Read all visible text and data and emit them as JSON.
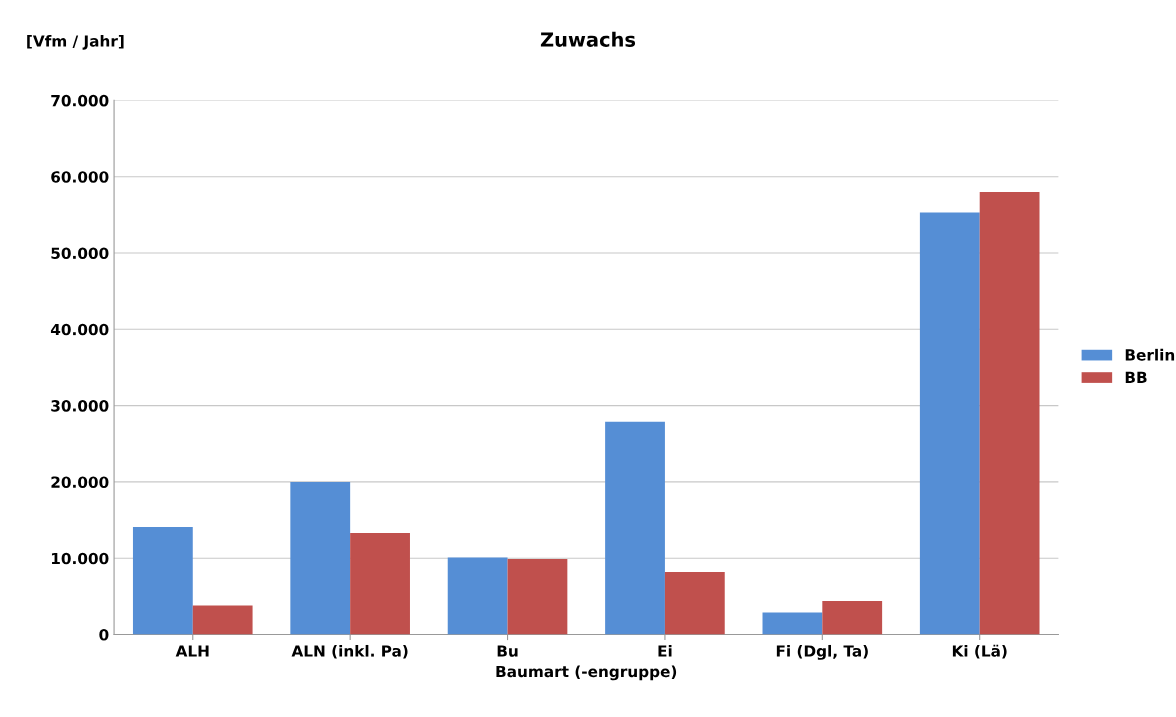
{
  "chart_data": {
    "type": "bar",
    "title": "Zuwachs",
    "ylabel": "[Vfm / Jahr]",
    "xlabel": "Baumart (-engruppe)",
    "categories": [
      "ALH",
      "ALN (inkl. Pa)",
      "Bu",
      "Ei",
      "Fi (Dgl, Ta)",
      "Ki (Lä)"
    ],
    "series": [
      {
        "name": "Berlin",
        "color": "#558ed5",
        "values": [
          14100,
          20000,
          10100,
          27900,
          2900,
          55300
        ]
      },
      {
        "name": "BB",
        "color": "#c0504d",
        "values": [
          3800,
          13300,
          9900,
          8200,
          4400,
          58000
        ]
      }
    ],
    "ylim": [
      0,
      70000
    ],
    "yticks": [
      {
        "value": 0,
        "label": "0"
      },
      {
        "value": 10000,
        "label": "10.000"
      },
      {
        "value": 20000,
        "label": "20.000"
      },
      {
        "value": 30000,
        "label": "30.000"
      },
      {
        "value": 40000,
        "label": "40.000"
      },
      {
        "value": 50000,
        "label": "50.000"
      },
      {
        "value": 60000,
        "label": "60.000"
      },
      {
        "value": 70000,
        "label": "70.000"
      }
    ],
    "grid": "y",
    "legend": "right"
  }
}
